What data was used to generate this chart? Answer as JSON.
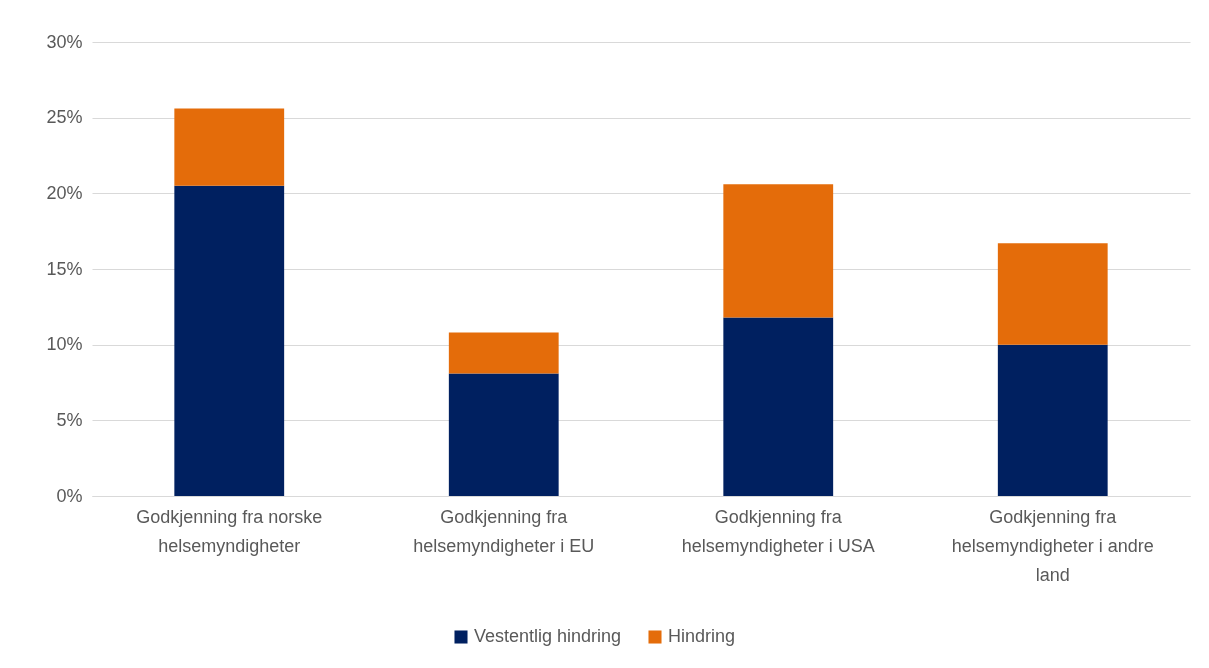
{
  "chart_data": {
    "type": "bar",
    "stacked": true,
    "categories": [
      "Godkjenning fra norske helsemyndigheter",
      "Godkjenning fra helsemyndigheter i EU",
      "Godkjenning fra helsemyndigheter i USA",
      "Godkjenning fra helsemyndigheter i andre land"
    ],
    "series": [
      {
        "name": "Vestentlig hindring",
        "color": "#002060",
        "values": [
          20.5,
          8.1,
          11.8,
          10.0
        ]
      },
      {
        "name": "Hindring",
        "color": "#e46c0a",
        "values": [
          5.1,
          2.7,
          8.8,
          6.7
        ]
      }
    ],
    "ylim": [
      0,
      30
    ],
    "yticks": [
      {
        "value": 0,
        "label": "0%"
      },
      {
        "value": 5,
        "label": "5%"
      },
      {
        "value": 10,
        "label": "10%"
      },
      {
        "value": 15,
        "label": "15%"
      },
      {
        "value": 20,
        "label": "20%"
      },
      {
        "value": 25,
        "label": "25%"
      },
      {
        "value": 30,
        "label": "30%"
      }
    ],
    "grid": "y",
    "legend": "bottom"
  }
}
